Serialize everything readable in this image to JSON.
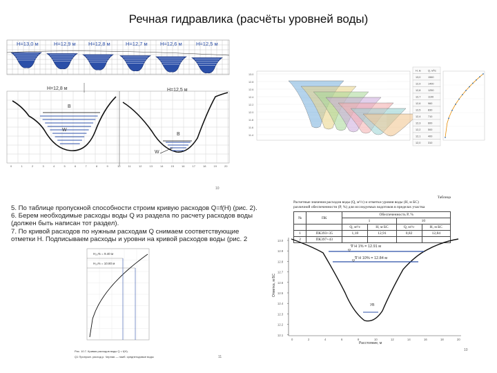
{
  "page": {
    "title": "Речная гидравлика (расчёты уровней воды)"
  },
  "fig1": {
    "top_labels": [
      "H=13,0 м",
      "H=12,9 м",
      "H=12,8 м",
      "H=12,7 м",
      "H=12,6 м",
      "H=12,5 м"
    ],
    "left_level": "H=12,8 м",
    "right_level": "H=12,5 м",
    "width_label": "B",
    "area_label": "W",
    "x_ticks": [
      "0",
      "1",
      "2",
      "3",
      "4",
      "5",
      "6",
      "7",
      "8",
      "9",
      "10",
      "11",
      "12",
      "13",
      "14",
      "15",
      "16",
      "17",
      "18",
      "19",
      "20"
    ],
    "y_ticks": [
      "13",
      "12",
      "11",
      "10",
      "9",
      "8"
    ]
  },
  "fig2": {
    "y_ticks": [
      "13.0",
      "12.8",
      "12.6",
      "12.4",
      "12.2",
      "12.0",
      "11.8",
      "11.6",
      "11.4"
    ],
    "table": [
      [
        "H, м",
        "Q, м³/с"
      ],
      [
        "13,0",
        "1560"
      ],
      [
        "12,9",
        "1400"
      ],
      [
        "12,8",
        "1250"
      ],
      [
        "12,7",
        "1100"
      ],
      [
        "12,6",
        "960"
      ],
      [
        "12,5",
        "830"
      ],
      [
        "12,4",
        "710"
      ],
      [
        "12,3",
        "600"
      ],
      [
        "12,2",
        "500"
      ],
      [
        "12,1",
        "400"
      ],
      [
        "12,0",
        "310"
      ]
    ]
  },
  "text5": {
    "lines": [
      "5. По таблице пропускной способности строим кривую расходов Q=f(H) (рис. 2).",
      "6. Берем необходимые расходы воды Q из раздела по расчету расходов воды",
      "(должен быть написан тот раздел).",
      "7. По кривой расходов по нужным расходам Q снимаем соответствующие",
      "отметки H. Подписываем расходы и уровни на кривой расходов воды (рис. 2"
    ]
  },
  "fig3": {
    "label1": "H₂₀% = 9.40 м",
    "label2": "H₁₀% = 10.80 м",
    "caption1": "Рис. 10.7. Кривая расходов воды Q = f(H).",
    "caption2": "Q1 Пропускн. расход р. Черная — наиб. среднегодовые воды",
    "page_no": "11"
  },
  "table4": {
    "table_no": "Таблица",
    "caption1": "Расчетные значения расходов воды (Q, м³/с) и отметки уровня воды (H, м БС)",
    "caption2": "различной обеспеченности (P, %) для исследуемых водотоков в пределах участка",
    "caption3": "Обеспеченность P, %",
    "columns": [
      "№",
      "ПК",
      "Q, м³/с",
      "H, м БС",
      "Q, м³/с",
      "H, м БС"
    ],
    "pcts": [
      "1",
      "10"
    ],
    "rows": [
      [
        "1",
        "ПК393+35",
        "1,18",
        "12,91",
        "0,82",
        "12,84"
      ],
      [
        "2",
        "ПК397+43",
        "",
        "",
        "",
        ""
      ]
    ]
  },
  "fig4": {
    "label_a": "∇ H 1% = 12.91 м",
    "label_b": "∇ Н 10% = 12.84 м",
    "label_c": "УВ",
    "ylabel": "Отметка, м БС",
    "xlabel": "Расстояние, м",
    "y_ticks": [
      "13.0",
      "12.9",
      "12.8",
      "12.7",
      "12.6",
      "12.5",
      "12.4",
      "12.3",
      "12.2",
      "12.1"
    ],
    "x_ticks": [
      "0",
      "2",
      "4",
      "6",
      "8",
      "10",
      "12",
      "14",
      "16",
      "18",
      "20"
    ],
    "page_no": "10"
  },
  "colors": {
    "water": "#2b4fa8",
    "grid": "#b8b8b8"
  }
}
